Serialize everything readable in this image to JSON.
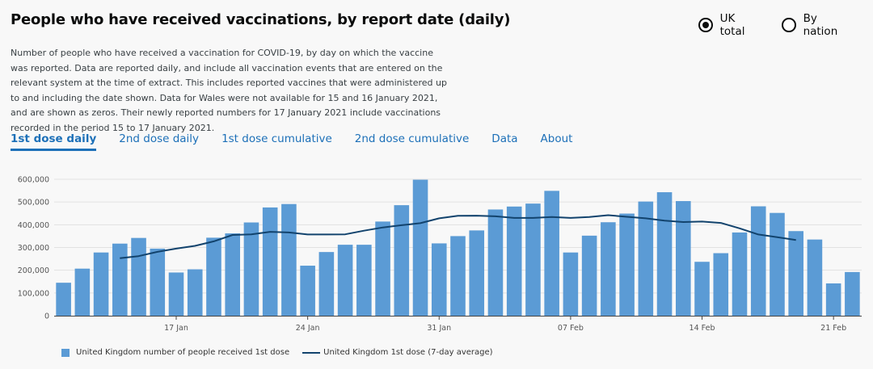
{
  "header": {
    "title": "People who have received vaccinations, by report date (daily)",
    "radio_uk": "UK total",
    "radio_nation": "By nation"
  },
  "description": "Number of people who have received a vaccination for COVID-19, by day on which the vaccine was reported. Data are reported daily, and include all vaccination events that are entered on the relevant system at the time of extract. This includes reported vaccines that were administered up to and including the date shown. Data for Wales were not available for 15 and 16 January 2021, and are shown as zeros. Their newly reported numbers for 17 January 2021 include vaccinations recorded in the period 15 to 17 January 2021.",
  "tabs": [
    "1st dose daily",
    "2nd dose daily",
    "1st dose cumulative",
    "2nd dose cumulative",
    "Data",
    "About"
  ],
  "colors": {
    "bar": "#5b9bd5",
    "line": "#12436d",
    "accent": "#1d70b8"
  },
  "chart_data": {
    "type": "bar",
    "ylim": [
      0,
      600000
    ],
    "yticks": [
      "0",
      "100,000",
      "200,000",
      "300,000",
      "400,000",
      "500,000",
      "600,000"
    ],
    "xticks": [
      {
        "label": "17 Jan",
        "index": 6
      },
      {
        "label": "24 Jan",
        "index": 13
      },
      {
        "label": "31 Jan",
        "index": 20
      },
      {
        "label": "07 Feb",
        "index": 27
      },
      {
        "label": "14 Feb",
        "index": 34
      },
      {
        "label": "21 Feb",
        "index": 41
      }
    ],
    "series": [
      {
        "name": "United Kingdom number of people received 1st dose",
        "kind": "bar",
        "values": [
          145000,
          207000,
          278000,
          317000,
          342000,
          295000,
          190000,
          204000,
          343000,
          362000,
          410000,
          476000,
          491000,
          220000,
          280000,
          312000,
          312000,
          414000,
          486000,
          598000,
          318000,
          350000,
          375000,
          467000,
          480000,
          493000,
          549000,
          278000,
          352000,
          411000,
          449000,
          502000,
          543000,
          504000,
          237000,
          275000,
          366000,
          481000,
          452000,
          372000,
          335000,
          142000,
          192000
        ]
      },
      {
        "name": "United Kingdom 1st dose (7-day average)",
        "kind": "line",
        "values": [
          null,
          null,
          null,
          253000,
          262000,
          281000,
          295000,
          307000,
          327000,
          355000,
          358000,
          369000,
          366000,
          357000,
          357000,
          358000,
          374000,
          388000,
          398000,
          407000,
          428000,
          439000,
          440000,
          437000,
          430000,
          430000,
          434000,
          430000,
          434000,
          442000,
          435000,
          428000,
          418000,
          412000,
          414000,
          408000,
          384000,
          357000,
          345000,
          333000,
          null,
          null,
          null
        ]
      }
    ]
  }
}
